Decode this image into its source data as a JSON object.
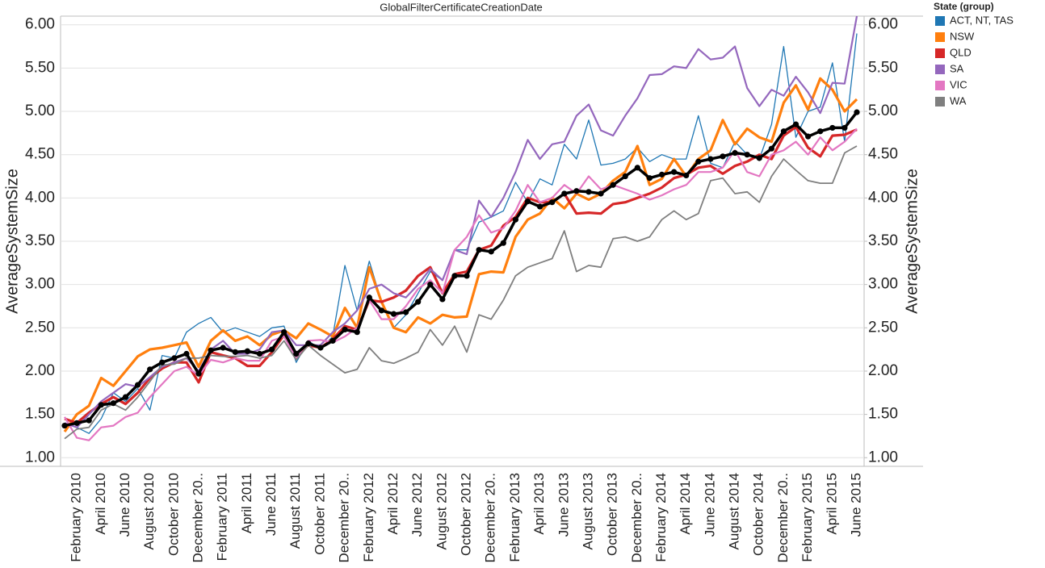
{
  "chart_data": {
    "type": "line",
    "title": "GlobalFilterCertificateCreationDate",
    "y_label": "AverageSystemSize",
    "y2_label": "AverageSystemSize",
    "legend_title": "State (group)",
    "legend_position": "right",
    "grid": true,
    "ylim": [
      0.9,
      6.1
    ],
    "yticks": [
      {
        "value": 1,
        "label": "1.00"
      },
      {
        "value": 1.5,
        "label": "1.50"
      },
      {
        "value": 2,
        "label": "2.00"
      },
      {
        "value": 2.5,
        "label": "2.50"
      },
      {
        "value": 3,
        "label": "3.00"
      },
      {
        "value": 3.5,
        "label": "3.50"
      },
      {
        "value": 4,
        "label": "4.00"
      },
      {
        "value": 4.5,
        "label": "4.50"
      },
      {
        "value": 5,
        "label": "5.00"
      },
      {
        "value": 5.5,
        "label": "5.50"
      },
      {
        "value": 6,
        "label": "6.00"
      }
    ],
    "y2lim": [
      0.9,
      6.1
    ],
    "y2ticks": [
      {
        "value": 1,
        "label": "1.00"
      },
      {
        "value": 1.5,
        "label": "1.50"
      },
      {
        "value": 2,
        "label": "2.00"
      },
      {
        "value": 2.5,
        "label": "2.50"
      },
      {
        "value": 3,
        "label": "3.00"
      },
      {
        "value": 3.5,
        "label": "3.50"
      },
      {
        "value": 4,
        "label": "4.00"
      },
      {
        "value": 4.5,
        "label": "4.50"
      },
      {
        "value": 5,
        "label": "5.00"
      },
      {
        "value": 5.5,
        "label": "5.50"
      },
      {
        "value": 6,
        "label": "6.00"
      }
    ],
    "categories": [
      null,
      "February 2010",
      null,
      "April 2010",
      null,
      "June 2010",
      null,
      "August 2010",
      null,
      "October 2010",
      null,
      "December 20..",
      null,
      "February 2011",
      null,
      "April 2011",
      null,
      "June 2011",
      null,
      "August 2011",
      null,
      "October 2011",
      null,
      "December 20..",
      null,
      "February 2012",
      null,
      "April 2012",
      null,
      "June 2012",
      null,
      "August 2012",
      null,
      "October 2012",
      null,
      "December 20..",
      null,
      "February 2013",
      null,
      "April 2013",
      null,
      "June 2013",
      null,
      "August 2013",
      null,
      "October 2013",
      null,
      "December 20..",
      null,
      "February 2014",
      null,
      "April 2014",
      null,
      "June 2014",
      null,
      "August 2014",
      null,
      "October 2014",
      null,
      "December 20..",
      null,
      "February 2015",
      null,
      "April 2015",
      null,
      "June 2015"
    ],
    "series": [
      {
        "name": "ACT, NT, TAS",
        "color": "#1f77b4",
        "values": [
          1.4,
          1.35,
          1.28,
          1.45,
          1.75,
          1.65,
          1.8,
          1.55,
          2.18,
          2.15,
          2.45,
          2.55,
          2.62,
          2.45,
          2.5,
          2.45,
          2.4,
          2.5,
          2.52,
          2.1,
          2.35,
          2.25,
          2.4,
          3.22,
          2.7,
          3.27,
          2.8,
          2.5,
          2.65,
          2.9,
          3.15,
          3.05,
          3.4,
          3.4,
          3.72,
          3.78,
          3.85,
          4.18,
          3.95,
          4.22,
          4.15,
          4.62,
          4.45,
          4.9,
          4.38,
          4.4,
          4.45,
          4.58,
          4.42,
          4.5,
          4.45,
          4.45,
          4.95,
          4.4,
          4.35,
          4.65,
          4.5,
          4.45,
          4.85,
          5.75,
          4.7,
          5.0,
          5.05,
          5.56,
          4.65,
          5.9
        ]
      },
      {
        "name": "NSW",
        "color": "#ff7f0e",
        "values": [
          1.3,
          1.5,
          1.6,
          1.92,
          1.83,
          2.0,
          2.17,
          2.25,
          2.27,
          2.3,
          2.33,
          2.05,
          2.35,
          2.47,
          2.35,
          2.4,
          2.3,
          2.42,
          2.47,
          2.38,
          2.55,
          2.48,
          2.4,
          2.73,
          2.5,
          3.2,
          2.8,
          2.5,
          2.45,
          2.62,
          2.55,
          2.65,
          2.62,
          2.63,
          3.12,
          3.15,
          3.14,
          3.55,
          3.75,
          3.82,
          4.0,
          3.88,
          4.05,
          3.98,
          4.05,
          4.2,
          4.3,
          4.6,
          4.15,
          4.22,
          4.45,
          4.25,
          4.45,
          4.55,
          4.9,
          4.62,
          4.8,
          4.7,
          4.65,
          5.1,
          5.3,
          5.02,
          5.38,
          5.25,
          5.0,
          5.14
        ]
      },
      {
        "name": "QLD",
        "color": "#d62728",
        "values": [
          1.45,
          1.4,
          1.52,
          1.62,
          1.7,
          1.62,
          1.75,
          1.92,
          2.03,
          2.1,
          2.1,
          1.87,
          2.22,
          2.18,
          2.15,
          2.06,
          2.06,
          2.22,
          2.42,
          2.18,
          2.3,
          2.27,
          2.37,
          2.52,
          2.48,
          2.82,
          2.8,
          2.85,
          2.93,
          3.1,
          3.2,
          2.9,
          3.12,
          3.15,
          3.4,
          3.45,
          3.68,
          3.78,
          4.0,
          3.95,
          3.95,
          4.05,
          3.82,
          3.83,
          3.82,
          3.93,
          3.95,
          4.0,
          4.05,
          4.12,
          4.23,
          4.27,
          4.35,
          4.37,
          4.28,
          4.37,
          4.42,
          4.5,
          4.45,
          4.72,
          4.82,
          4.58,
          4.48,
          4.72,
          4.73,
          4.79
        ]
      },
      {
        "name": "SA",
        "color": "#9467bd",
        "values": [
          1.4,
          1.35,
          1.5,
          1.65,
          1.75,
          1.85,
          1.82,
          1.93,
          2.05,
          2.1,
          2.15,
          2.0,
          2.25,
          2.35,
          2.2,
          2.2,
          2.25,
          2.45,
          2.47,
          2.3,
          2.3,
          2.3,
          2.45,
          2.55,
          2.7,
          2.95,
          3.0,
          2.9,
          2.85,
          3.0,
          3.18,
          3.05,
          3.4,
          3.35,
          3.97,
          3.78,
          4.0,
          4.3,
          4.67,
          4.45,
          4.62,
          4.65,
          4.95,
          5.08,
          4.78,
          4.72,
          4.95,
          5.15,
          5.42,
          5.43,
          5.52,
          5.5,
          5.72,
          5.6,
          5.62,
          5.75,
          5.27,
          5.06,
          5.25,
          5.18,
          5.4,
          5.22,
          4.98,
          5.33,
          5.32,
          6.1
        ]
      },
      {
        "name": "VIC",
        "color": "#e377c2",
        "values": [
          1.47,
          1.23,
          1.2,
          1.35,
          1.37,
          1.47,
          1.52,
          1.7,
          1.85,
          2.0,
          2.05,
          1.95,
          2.13,
          2.1,
          2.15,
          2.12,
          2.12,
          2.35,
          2.4,
          2.15,
          2.35,
          2.36,
          2.33,
          2.4,
          2.5,
          2.82,
          2.6,
          2.6,
          2.75,
          2.95,
          3.05,
          2.9,
          3.4,
          3.55,
          3.8,
          3.6,
          3.65,
          3.85,
          4.15,
          3.95,
          4.0,
          4.15,
          4.05,
          4.25,
          4.1,
          4.15,
          4.1,
          4.05,
          3.98,
          4.03,
          4.1,
          4.15,
          4.3,
          4.3,
          4.35,
          4.55,
          4.3,
          4.25,
          4.5,
          4.55,
          4.65,
          4.5,
          4.7,
          4.55,
          4.65,
          4.8
        ]
      },
      {
        "name": "WA",
        "color": "#7f7f7f",
        "values": [
          1.22,
          1.33,
          1.35,
          1.55,
          1.62,
          1.55,
          1.7,
          1.88,
          2.07,
          2.08,
          2.15,
          2.15,
          2.18,
          2.17,
          2.17,
          2.18,
          2.15,
          2.18,
          2.35,
          2.13,
          2.3,
          2.18,
          2.08,
          1.98,
          2.02,
          2.27,
          2.12,
          2.09,
          2.15,
          2.22,
          2.48,
          2.3,
          2.52,
          2.22,
          2.65,
          2.6,
          2.82,
          3.1,
          3.2,
          3.25,
          3.3,
          3.62,
          3.15,
          3.22,
          3.2,
          3.53,
          3.55,
          3.5,
          3.55,
          3.75,
          3.85,
          3.75,
          3.82,
          4.2,
          4.23,
          4.05,
          4.07,
          3.95,
          4.25,
          4.45,
          4.32,
          4.2,
          4.17,
          4.17,
          4.52,
          4.6
        ]
      },
      {
        "color": "#000000",
        "markers": true,
        "values": [
          1.37,
          1.4,
          1.43,
          1.61,
          1.63,
          1.7,
          1.84,
          2.02,
          2.1,
          2.15,
          2.2,
          1.97,
          2.24,
          2.27,
          2.22,
          2.23,
          2.2,
          2.25,
          2.45,
          2.2,
          2.32,
          2.27,
          2.35,
          2.48,
          2.45,
          2.85,
          2.7,
          2.66,
          2.68,
          2.8,
          3.0,
          2.83,
          3.1,
          3.1,
          3.4,
          3.38,
          3.48,
          3.75,
          3.96,
          3.9,
          3.95,
          4.05,
          4.08,
          4.07,
          4.05,
          4.15,
          4.25,
          4.35,
          4.23,
          4.27,
          4.3,
          4.26,
          4.42,
          4.45,
          4.48,
          4.52,
          4.5,
          4.46,
          4.57,
          4.77,
          4.85,
          4.71,
          4.77,
          4.81,
          4.81,
          4.99
        ]
      }
    ]
  }
}
